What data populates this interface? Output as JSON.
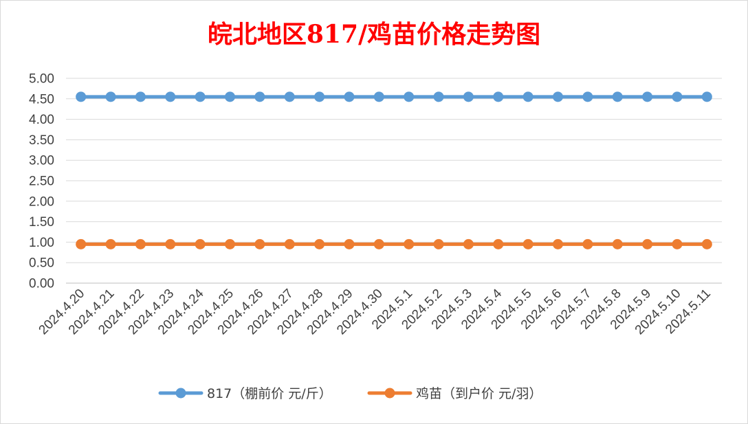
{
  "chart_data": {
    "type": "line",
    "title": "皖北地区817/鸡苗价格走势图",
    "xlabel": "",
    "ylabel": "",
    "categories": [
      "2024.4.20",
      "2024.4.21",
      "2024.4.22",
      "2024.4.23",
      "2024.4.24",
      "2024.4.25",
      "2024.4.26",
      "2024.4.27",
      "2024.4.28",
      "2024.4.29",
      "2024.4.30",
      "2024.5.1",
      "2024.5.2",
      "2024.5.3",
      "2024.5.4",
      "2024.5.5",
      "2024.5.6",
      "2024.5.7",
      "2024.5.8",
      "2024.5.9",
      "2024.5.10",
      "2024.5.11"
    ],
    "ylim": [
      0,
      5
    ],
    "yticks": [
      "0.00",
      "0.50",
      "1.00",
      "1.50",
      "2.00",
      "2.50",
      "3.00",
      "3.50",
      "4.00",
      "4.50",
      "5.00"
    ],
    "grid": true,
    "legend_position": "bottom",
    "series": [
      {
        "name": "817（棚前价 元/斤）",
        "color": "#5b9bd5",
        "values": [
          4.55,
          4.55,
          4.55,
          4.55,
          4.55,
          4.55,
          4.55,
          4.55,
          4.55,
          4.55,
          4.55,
          4.55,
          4.55,
          4.55,
          4.55,
          4.55,
          4.55,
          4.55,
          4.55,
          4.55,
          4.55,
          4.55
        ]
      },
      {
        "name": "鸡苗（到户价 元/羽）",
        "color": "#ed7d31",
        "values": [
          0.95,
          0.95,
          0.95,
          0.95,
          0.95,
          0.95,
          0.95,
          0.95,
          0.95,
          0.95,
          0.95,
          0.95,
          0.95,
          0.95,
          0.95,
          0.95,
          0.95,
          0.95,
          0.95,
          0.95,
          0.95,
          0.95
        ]
      }
    ]
  }
}
